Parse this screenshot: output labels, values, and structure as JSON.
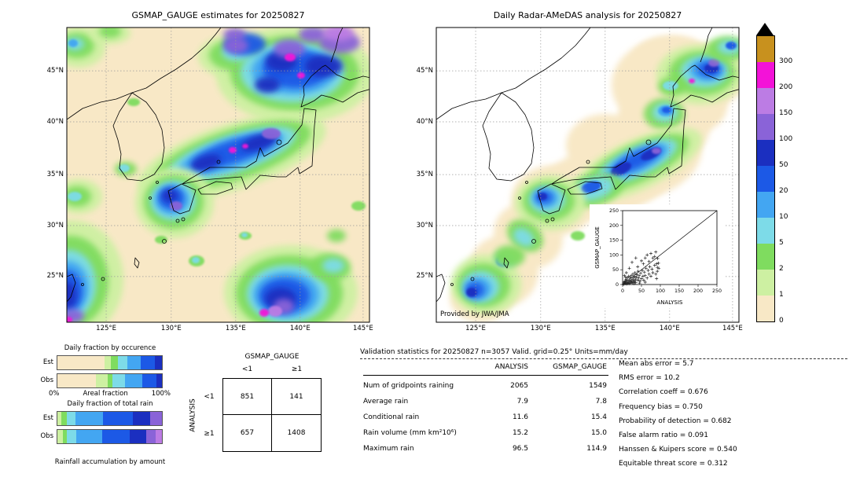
{
  "colorbar": {
    "tick_labels_bottom_up": [
      "0",
      "1",
      "2",
      "5",
      "10",
      "20",
      "50",
      "100",
      "150",
      "200",
      "300"
    ],
    "bin_colors_bottom_up": [
      "#f8e8c6",
      "#cdf0a2",
      "#7fdc5f",
      "#7ddbe8",
      "#43a6f2",
      "#1c59e6",
      "#1b2fc0",
      "#8a63d8",
      "#bc7ce4",
      "#f312d8",
      "#c8911e"
    ],
    "over_color": "#000000",
    "units": "mm/day"
  },
  "chart_data": [
    {
      "id": "gsmap_map",
      "type": "heatmap",
      "title": "GSMAP_GAUGE estimates for 20250827",
      "lon_ticks": [
        {
          "label": "125°E",
          "f": 0.13
        },
        {
          "label": "130°E",
          "f": 0.345
        },
        {
          "label": "135°E",
          "f": 0.558
        },
        {
          "label": "140°E",
          "f": 0.771
        },
        {
          "label": "145°E",
          "f": 0.979
        }
      ],
      "lat_ticks": [
        {
          "label": "45°N",
          "f": 0.147
        },
        {
          "label": "40°N",
          "f": 0.32
        },
        {
          "label": "35°N",
          "f": 0.499
        },
        {
          "label": "30°N",
          "f": 0.672
        },
        {
          "label": "25°N",
          "f": 0.845
        }
      ],
      "scale_levels": [
        0,
        1,
        2,
        5,
        10,
        20,
        50,
        100,
        150,
        200,
        300
      ],
      "units": "mm/day"
    },
    {
      "id": "radar_map",
      "type": "heatmap",
      "title": "Daily Radar-AMeDAS analysis for 20250827",
      "credit": "Provided by JWA/JMA"
    },
    {
      "id": "inset_scatter",
      "type": "scatter",
      "xlabel": "ANALYSIS",
      "ylabel": "GSMAP_GAUGE",
      "xlim": [
        0,
        250
      ],
      "ylim": [
        0,
        250
      ],
      "ticks": [
        0,
        50,
        100,
        150,
        200,
        250
      ],
      "points": [
        [
          2,
          1
        ],
        [
          3,
          6
        ],
        [
          4,
          2
        ],
        [
          5,
          9
        ],
        [
          6,
          4
        ],
        [
          7,
          12
        ],
        [
          8,
          3
        ],
        [
          9,
          18
        ],
        [
          10,
          7
        ],
        [
          11,
          2
        ],
        [
          12,
          14
        ],
        [
          13,
          22
        ],
        [
          14,
          5
        ],
        [
          15,
          10
        ],
        [
          16,
          28
        ],
        [
          17,
          3
        ],
        [
          18,
          15
        ],
        [
          19,
          8
        ],
        [
          20,
          24
        ],
        [
          21,
          4
        ],
        [
          22,
          12
        ],
        [
          23,
          30
        ],
        [
          24,
          9
        ],
        [
          25,
          18
        ],
        [
          26,
          6
        ],
        [
          27,
          35
        ],
        [
          28,
          14
        ],
        [
          29,
          22
        ],
        [
          30,
          8
        ],
        [
          31,
          28
        ],
        [
          32,
          12
        ],
        [
          33,
          40
        ],
        [
          34,
          18
        ],
        [
          35,
          6
        ],
        [
          36,
          25
        ],
        [
          38,
          33
        ],
        [
          40,
          15
        ],
        [
          41,
          45
        ],
        [
          42,
          22
        ],
        [
          44,
          30
        ],
        [
          46,
          12
        ],
        [
          48,
          38
        ],
        [
          50,
          20
        ],
        [
          52,
          48
        ],
        [
          54,
          28
        ],
        [
          56,
          15
        ],
        [
          58,
          42
        ],
        [
          60,
          30
        ],
        [
          62,
          55
        ],
        [
          65,
          22
        ],
        [
          68,
          48
        ],
        [
          70,
          35
        ],
        [
          72,
          60
        ],
        [
          75,
          28
        ],
        [
          78,
          52
        ],
        [
          80,
          40
        ],
        [
          85,
          65
        ],
        [
          88,
          35
        ],
        [
          92,
          58
        ],
        [
          95,
          72
        ],
        [
          60,
          8
        ],
        [
          45,
          5
        ],
        [
          30,
          3
        ],
        [
          90,
          20
        ],
        [
          80,
          90
        ],
        [
          70,
          78
        ],
        [
          10,
          40
        ],
        [
          18,
          55
        ],
        [
          25,
          75
        ],
        [
          35,
          90
        ],
        [
          5,
          30
        ],
        [
          8,
          25
        ],
        [
          96,
          55
        ],
        [
          90,
          70
        ],
        [
          85,
          95
        ],
        [
          93,
          88
        ],
        [
          75,
          105
        ],
        [
          60,
          90
        ],
        [
          55,
          70
        ],
        [
          65,
          100
        ],
        [
          40,
          60
        ],
        [
          50,
          80
        ],
        [
          88,
          110
        ],
        [
          92,
          45
        ]
      ]
    },
    {
      "id": "occurrence_bars",
      "type": "bar",
      "title": "Daily fraction by occurence",
      "rows": [
        {
          "label": "Est",
          "segments": [
            [
              0,
              45
            ],
            [
              1,
              6
            ],
            [
              2,
              7
            ],
            [
              3,
              9
            ],
            [
              4,
              13
            ],
            [
              5,
              13
            ],
            [
              6,
              7
            ]
          ]
        },
        {
          "label": "Obs",
          "segments": [
            [
              0,
              37
            ],
            [
              1,
              11
            ],
            [
              2,
              5
            ],
            [
              3,
              12
            ],
            [
              4,
              16
            ],
            [
              5,
              14
            ],
            [
              6,
              5
            ]
          ]
        }
      ],
      "axis_left": "0%",
      "axis_label": "Areal fraction",
      "axis_right": "100%"
    },
    {
      "id": "totalrain_bars",
      "type": "bar",
      "title": "Daily fraction of total rain",
      "rows": [
        {
          "label": "Est",
          "segments": [
            [
              1,
              4
            ],
            [
              2,
              5
            ],
            [
              3,
              8
            ],
            [
              4,
              27
            ],
            [
              5,
              28
            ],
            [
              6,
              17
            ],
            [
              7,
              11
            ]
          ]
        },
        {
          "label": "Obs",
          "segments": [
            [
              1,
              5
            ],
            [
              2,
              4
            ],
            [
              3,
              9
            ],
            [
              4,
              25
            ],
            [
              5,
              26
            ],
            [
              6,
              16
            ],
            [
              7,
              9
            ],
            [
              8,
              6
            ]
          ]
        }
      ],
      "footer": "Rainfall accumulation by amount"
    },
    {
      "id": "contingency",
      "type": "table",
      "col_group": "GSMAP_GAUGE",
      "row_group": "ANALYSIS",
      "col_labels": [
        "<1",
        "≥1"
      ],
      "row_labels": [
        "<1",
        "≥1"
      ],
      "values": [
        [
          851,
          141
        ],
        [
          657,
          1408
        ]
      ]
    },
    {
      "id": "validation",
      "type": "table",
      "header": "Validation statistics for 20250827  n=3057 Valid. grid=0.25° Units=mm/day",
      "columns": [
        "ANALYSIS",
        "GSMAP_GAUGE"
      ],
      "rows": [
        {
          "label": "Num of gridpoints raining",
          "values": [
            "2065",
            "1549"
          ]
        },
        {
          "label": "Average rain",
          "values": [
            "7.9",
            "7.8"
          ]
        },
        {
          "label": "Conditional rain",
          "values": [
            "11.6",
            "15.4"
          ]
        },
        {
          "label": "Rain volume (mm km²10⁶)",
          "values": [
            "15.2",
            "15.0"
          ]
        },
        {
          "label": "Maximum rain",
          "values": [
            "96.5",
            "114.9"
          ]
        }
      ],
      "scores": [
        {
          "label": "Mean abs error",
          "value": "5.7"
        },
        {
          "label": "RMS error",
          "value": "10.2"
        },
        {
          "label": "Correlation coeff",
          "value": "0.676"
        },
        {
          "label": "Frequency bias",
          "value": "0.750"
        },
        {
          "label": "Probability of detection",
          "value": "0.682"
        },
        {
          "label": "False alarm ratio",
          "value": "0.091"
        },
        {
          "label": "Hanssen & Kuipers score",
          "value": "0.540"
        },
        {
          "label": "Equitable threat score",
          "value": "0.312"
        }
      ]
    }
  ]
}
